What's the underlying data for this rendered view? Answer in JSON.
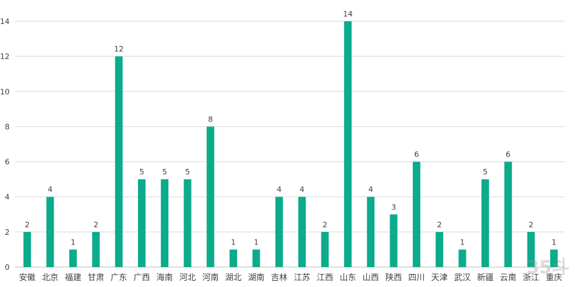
{
  "chart_data": {
    "type": "bar",
    "categories": [
      "安徽",
      "北京",
      "福建",
      "甘肃",
      "广东",
      "广西",
      "海南",
      "河北",
      "河南",
      "湖北",
      "湖南",
      "吉林",
      "江苏",
      "江西",
      "山东",
      "山西",
      "陕西",
      "四川",
      "天津",
      "武汉",
      "新疆",
      "云南",
      "浙江",
      "重庆"
    ],
    "values": [
      2,
      4,
      1,
      2,
      12,
      5,
      5,
      5,
      8,
      1,
      1,
      4,
      4,
      2,
      14,
      4,
      3,
      6,
      2,
      1,
      5,
      6,
      2,
      1
    ],
    "ylim": [
      0,
      14
    ],
    "yticks": [
      0,
      2,
      4,
      6,
      8,
      10,
      12,
      14
    ],
    "grid": true,
    "data_labels": true,
    "bar_color": "#0bab8c",
    "grid_color": "#d9d9d9",
    "label_color": "#404040"
  },
  "watermark_text": "35斗"
}
